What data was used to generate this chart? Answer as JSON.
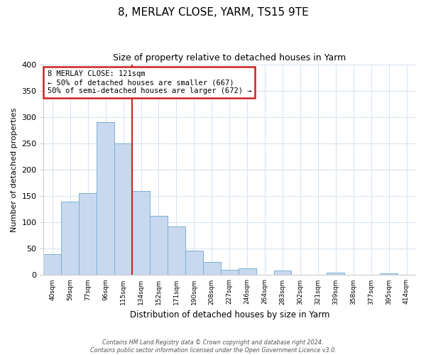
{
  "title": "8, MERLAY CLOSE, YARM, TS15 9TE",
  "subtitle": "Size of property relative to detached houses in Yarm",
  "xlabel": "Distribution of detached houses by size in Yarm",
  "ylabel": "Number of detached properties",
  "bar_labels": [
    "40sqm",
    "59sqm",
    "77sqm",
    "96sqm",
    "115sqm",
    "134sqm",
    "152sqm",
    "171sqm",
    "190sqm",
    "208sqm",
    "227sqm",
    "246sqm",
    "264sqm",
    "283sqm",
    "302sqm",
    "321sqm",
    "339sqm",
    "358sqm",
    "377sqm",
    "395sqm",
    "414sqm"
  ],
  "bar_values": [
    40,
    140,
    155,
    290,
    250,
    160,
    113,
    92,
    46,
    25,
    10,
    13,
    0,
    8,
    0,
    0,
    5,
    0,
    0,
    3,
    0
  ],
  "bar_color": "#c8d9ef",
  "bar_edge_color": "#7bafd4",
  "grid_color": "#d8e4f0",
  "annotation_title": "8 MERLAY CLOSE: 121sqm",
  "annotation_line1": "← 50% of detached houses are smaller (667)",
  "annotation_line2": "50% of semi-detached houses are larger (672) →",
  "annotation_box_color": "#ffffff",
  "annotation_border_color": "#cc2222",
  "ylim": [
    0,
    400
  ],
  "red_line_x": 4.5,
  "footer_line1": "Contains HM Land Registry data © Crown copyright and database right 2024.",
  "footer_line2": "Contains public sector information licensed under the Open Government Licence v3.0."
}
